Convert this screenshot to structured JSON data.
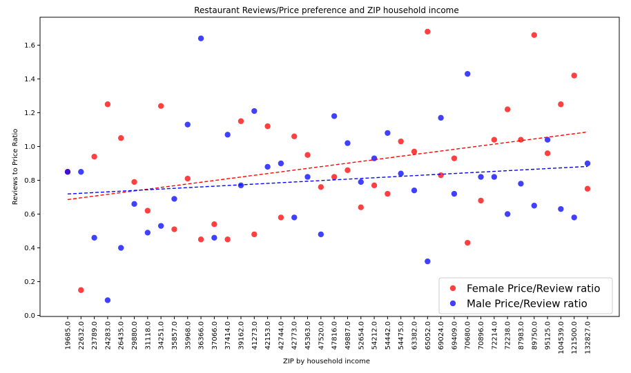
{
  "chart_data": {
    "type": "scatter",
    "title": "Restaurant Reviews/Price preference and  ZIP household income",
    "xlabel": "ZIP by household income",
    "ylabel": "Reviews to Price Ratio",
    "categories": [
      "19685.0",
      "22632.0",
      "23789.0",
      "24283.0",
      "26435.0",
      "29880.0",
      "31118.0",
      "34251.0",
      "35857.0",
      "35968.0",
      "36366.0",
      "37066.0",
      "37414.0",
      "39162.0",
      "41273.0",
      "42153.0",
      "42744.0",
      "42773.0",
      "45363.0",
      "47520.0",
      "47816.0",
      "49887.0",
      "52654.0",
      "54212.0",
      "54442.0",
      "54475.0",
      "63382.0",
      "65052.0",
      "69024.0",
      "69409.0",
      "70680.0",
      "70896.0",
      "72214.0",
      "72238.0",
      "87983.0",
      "89750.0",
      "95125.0",
      "104539.0",
      "121500.0",
      "132827.0"
    ],
    "yticks": [
      "0.0",
      "0.2",
      "0.4",
      "0.6",
      "0.8",
      "1.0",
      "1.2",
      "1.4",
      "1.6"
    ],
    "ylim": [
      0,
      1.75
    ],
    "grid": false,
    "legend_position": "lower-right",
    "series": [
      {
        "name": "Female Price/Review ratio",
        "color": "#ff0000",
        "values": [
          0.85,
          0.15,
          0.94,
          1.25,
          1.05,
          0.79,
          0.62,
          1.24,
          0.51,
          0.81,
          0.45,
          0.54,
          0.45,
          1.15,
          0.48,
          1.12,
          0.58,
          1.06,
          0.95,
          0.76,
          0.82,
          0.86,
          0.64,
          0.77,
          0.72,
          1.03,
          0.97,
          1.68,
          0.83,
          0.93,
          0.43,
          0.68,
          1.04,
          1.22,
          1.04,
          1.66,
          0.96,
          1.25,
          1.42,
          0.75
        ],
        "trend": [
          0.686,
          1.086
        ]
      },
      {
        "name": "Male Price/Review ratio",
        "color": "#0000ff",
        "values": [
          0.85,
          0.85,
          0.46,
          0.09,
          0.4,
          0.66,
          0.49,
          0.53,
          0.69,
          1.13,
          1.64,
          0.46,
          1.07,
          0.77,
          1.21,
          0.88,
          0.9,
          0.58,
          0.82,
          0.48,
          1.18,
          1.02,
          0.79,
          0.93,
          1.08,
          0.84,
          0.74,
          0.32,
          1.17,
          0.72,
          1.43,
          0.82,
          0.82,
          0.6,
          0.78,
          0.65,
          1.04,
          0.63,
          0.58,
          0.9
        ],
        "trend": [
          0.719,
          0.882
        ]
      }
    ]
  }
}
